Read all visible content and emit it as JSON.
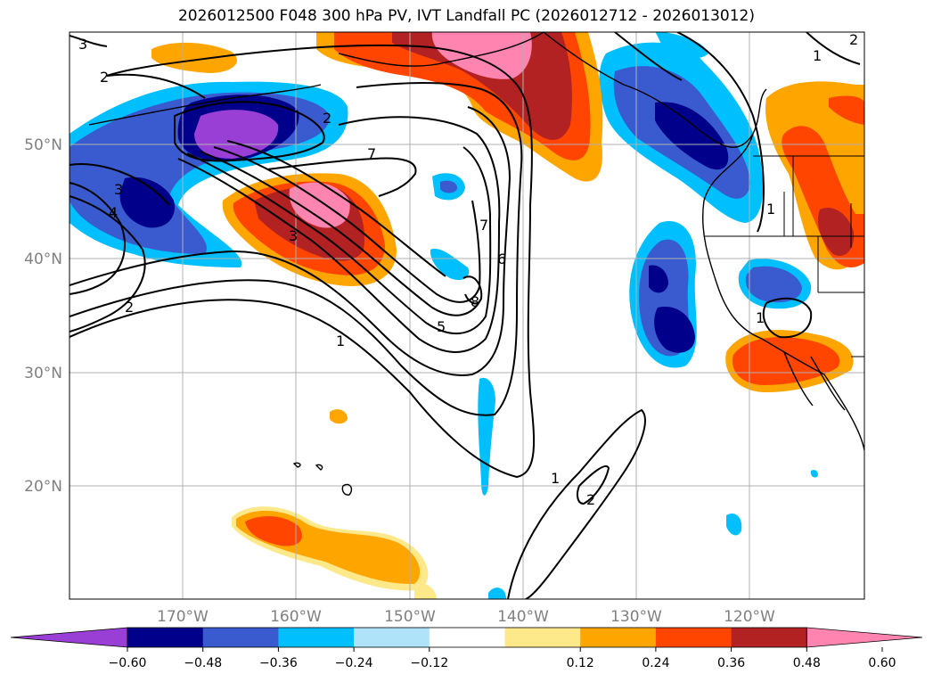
{
  "title": "2026012500 F048 300 hPa PV, IVT Landfall PC (2026012712 - 2026013012)",
  "axes": {
    "lat_labels": [
      "50°N",
      "40°N",
      "30°N",
      "20°N"
    ],
    "lon_labels": [
      "170°W",
      "160°W",
      "150°W",
      "140°W",
      "130°W",
      "120°W"
    ]
  },
  "colorbar": {
    "ticks": [
      "−0.60",
      "−0.48",
      "−0.36",
      "−0.24",
      "−0.12",
      "0.12",
      "0.24",
      "0.36",
      "0.48",
      "0.60"
    ],
    "colors": [
      "#9a3fd6",
      "#00008b",
      "#3a5bd0",
      "#00bfff",
      "#aee3fa",
      "#ffffff",
      "#fde88a",
      "#ffa500",
      "#ff4500",
      "#b22222",
      "#ff85b0"
    ]
  },
  "contour_labels": [
    "3",
    "2",
    "2",
    "7",
    "3",
    "4",
    "3",
    "2",
    "1",
    "5",
    "6",
    "7",
    "8",
    "1",
    "2",
    "1",
    "1",
    "2",
    "1"
  ]
}
